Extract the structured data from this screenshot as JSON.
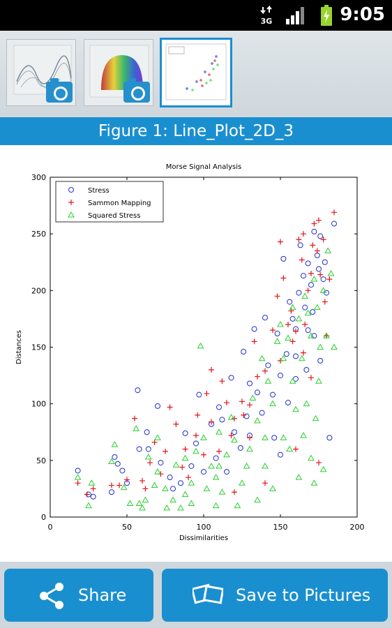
{
  "status_bar": {
    "time": "9:05",
    "network": "3G",
    "icons": [
      "3g-icon",
      "signal-icon",
      "battery-charging-icon"
    ]
  },
  "thumbnails": [
    {
      "name": "surface-wireframe-thumbnail",
      "selected": false
    },
    {
      "name": "surface-colormap-thumbnail",
      "selected": false
    },
    {
      "name": "scatter-plot-thumbnail",
      "selected": true
    }
  ],
  "figure_title": "Figure 1: Line_Plot_2D_3",
  "buttons": {
    "share_label": "Share",
    "save_label": "Save to Pictures"
  },
  "colors": {
    "accent": "#1a8fd0",
    "stress": "#1f2ecc",
    "sammon": "#e0141a",
    "squared": "#26d12a"
  },
  "chart_data": {
    "type": "scatter",
    "title": "Morse Signal Analysis",
    "xlabel": "Dissimilarities",
    "ylabel": "Distances",
    "xlim": [
      0,
      200
    ],
    "ylim": [
      0,
      300
    ],
    "xticks": [
      "0",
      "50",
      "100",
      "150",
      "200"
    ],
    "yticks": [
      "0",
      "50",
      "100",
      "150",
      "200",
      "250",
      "300"
    ],
    "legend": {
      "placement": "top-left"
    },
    "series": [
      {
        "name": "Stress",
        "marker": "circle",
        "color": "#1f2ecc",
        "points": [
          [
            18,
            41
          ],
          [
            25,
            20
          ],
          [
            28,
            18
          ],
          [
            40,
            22
          ],
          [
            42,
            53
          ],
          [
            44,
            47
          ],
          [
            47,
            41
          ],
          [
            50,
            30
          ],
          [
            57,
            112
          ],
          [
            63,
            75
          ],
          [
            64,
            60
          ],
          [
            70,
            98
          ],
          [
            78,
            35
          ],
          [
            80,
            25
          ],
          [
            88,
            74
          ],
          [
            92,
            45
          ],
          [
            95,
            65
          ],
          [
            100,
            40
          ],
          [
            105,
            82
          ],
          [
            108,
            52
          ],
          [
            110,
            97
          ],
          [
            115,
            40
          ],
          [
            120,
            75
          ],
          [
            124,
            61
          ],
          [
            128,
            89
          ],
          [
            130,
            72
          ],
          [
            133,
            166
          ],
          [
            135,
            110
          ],
          [
            138,
            92
          ],
          [
            142,
            134
          ],
          [
            145,
            108
          ],
          [
            148,
            162
          ],
          [
            150,
            125
          ],
          [
            152,
            228
          ],
          [
            154,
            144
          ],
          [
            156,
            190
          ],
          [
            158,
            175
          ],
          [
            160,
            166
          ],
          [
            162,
            198
          ],
          [
            163,
            240
          ],
          [
            165,
            213
          ],
          [
            166,
            185
          ],
          [
            168,
            224
          ],
          [
            170,
            205
          ],
          [
            171,
            181
          ],
          [
            172,
            252
          ],
          [
            174,
            231
          ],
          [
            175,
            219
          ],
          [
            176,
            248
          ],
          [
            178,
            210
          ],
          [
            180,
            198
          ],
          [
            182,
            70
          ],
          [
            185,
            259
          ],
          [
            58,
            60
          ],
          [
            72,
            48
          ],
          [
            85,
            30
          ],
          [
            97,
            108
          ],
          [
            118,
            123
          ],
          [
            126,
            146
          ],
          [
            140,
            176
          ],
          [
            146,
            70
          ],
          [
            155,
            101
          ],
          [
            160,
            142
          ],
          [
            167,
            130
          ],
          [
            172,
            160
          ],
          [
            176,
            138
          ],
          [
            179,
            225
          ],
          [
            160,
            122
          ],
          [
            168,
            165
          ],
          [
            150,
            55
          ],
          [
            130,
            118
          ],
          [
            112,
            86
          ]
        ]
      },
      {
        "name": "Sammon Mapping",
        "marker": "plus",
        "color": "#e0141a",
        "points": [
          [
            18,
            30
          ],
          [
            24,
            20
          ],
          [
            28,
            25
          ],
          [
            40,
            28
          ],
          [
            45,
            28
          ],
          [
            50,
            33
          ],
          [
            55,
            87
          ],
          [
            60,
            32
          ],
          [
            65,
            48
          ],
          [
            68,
            66
          ],
          [
            72,
            38
          ],
          [
            78,
            97
          ],
          [
            82,
            82
          ],
          [
            88,
            60
          ],
          [
            95,
            72
          ],
          [
            100,
            55
          ],
          [
            102,
            109
          ],
          [
            105,
            84
          ],
          [
            110,
            58
          ],
          [
            115,
            101
          ],
          [
            118,
            72
          ],
          [
            120,
            87
          ],
          [
            125,
            102
          ],
          [
            130,
            99
          ],
          [
            135,
            124
          ],
          [
            140,
            129
          ],
          [
            145,
            165
          ],
          [
            148,
            195
          ],
          [
            150,
            243
          ],
          [
            152,
            211
          ],
          [
            155,
            170
          ],
          [
            158,
            155
          ],
          [
            160,
            164
          ],
          [
            162,
            245
          ],
          [
            164,
            227
          ],
          [
            165,
            250
          ],
          [
            166,
            170
          ],
          [
            168,
            200
          ],
          [
            170,
            215
          ],
          [
            171,
            240
          ],
          [
            172,
            259
          ],
          [
            174,
            235
          ],
          [
            175,
            262
          ],
          [
            176,
            214
          ],
          [
            178,
            245
          ],
          [
            180,
            160
          ],
          [
            182,
            210
          ],
          [
            185,
            269
          ],
          [
            175,
            48
          ],
          [
            160,
            60
          ],
          [
            140,
            30
          ],
          [
            130,
            70
          ],
          [
            120,
            22
          ],
          [
            90,
            35
          ],
          [
            75,
            58
          ],
          [
            105,
            130
          ],
          [
            112,
            120
          ],
          [
            96,
            90
          ],
          [
            86,
            44
          ],
          [
            62,
            25
          ],
          [
            150,
            138
          ],
          [
            165,
            145
          ],
          [
            170,
            123
          ],
          [
            179,
            190
          ],
          [
            157,
            182
          ],
          [
            133,
            155
          ],
          [
            126,
            90
          ]
        ]
      },
      {
        "name": "Squared Stress",
        "marker": "triangle",
        "color": "#26d12a",
        "points": [
          [
            18,
            35
          ],
          [
            25,
            10
          ],
          [
            27,
            30
          ],
          [
            40,
            49
          ],
          [
            42,
            64
          ],
          [
            48,
            26
          ],
          [
            52,
            12
          ],
          [
            56,
            78
          ],
          [
            60,
            8
          ],
          [
            62,
            15
          ],
          [
            64,
            53
          ],
          [
            68,
            28
          ],
          [
            70,
            40
          ],
          [
            75,
            25
          ],
          [
            80,
            15
          ],
          [
            85,
            8
          ],
          [
            88,
            20
          ],
          [
            92,
            30
          ],
          [
            95,
            58
          ],
          [
            98,
            151
          ],
          [
            100,
            70
          ],
          [
            105,
            45
          ],
          [
            108,
            35
          ],
          [
            110,
            75
          ],
          [
            112,
            22
          ],
          [
            115,
            55
          ],
          [
            118,
            88
          ],
          [
            120,
            68
          ],
          [
            125,
            30
          ],
          [
            128,
            45
          ],
          [
            130,
            60
          ],
          [
            132,
            105
          ],
          [
            135,
            85
          ],
          [
            138,
            140
          ],
          [
            140,
            70
          ],
          [
            142,
            120
          ],
          [
            145,
            100
          ],
          [
            148,
            155
          ],
          [
            150,
            170
          ],
          [
            152,
            140
          ],
          [
            155,
            158
          ],
          [
            158,
            185
          ],
          [
            160,
            95
          ],
          [
            162,
            175
          ],
          [
            164,
            140
          ],
          [
            166,
            195
          ],
          [
            168,
            180
          ],
          [
            170,
            160
          ],
          [
            172,
            210
          ],
          [
            174,
            185
          ],
          [
            175,
            120
          ],
          [
            176,
            150
          ],
          [
            178,
            200
          ],
          [
            180,
            160
          ],
          [
            181,
            235
          ],
          [
            183,
            215
          ],
          [
            185,
            150
          ],
          [
            162,
            35
          ],
          [
            170,
            52
          ],
          [
            178,
            42
          ],
          [
            172,
            30
          ],
          [
            156,
            60
          ],
          [
            145,
            25
          ],
          [
            135,
            15
          ],
          [
            122,
            10
          ],
          [
            108,
            10
          ],
          [
            92,
            12
          ],
          [
            76,
            8
          ],
          [
            140,
            45
          ],
          [
            152,
            70
          ],
          [
            165,
            72
          ],
          [
            158,
            120
          ],
          [
            167,
            100
          ],
          [
            173,
            87
          ],
          [
            110,
            45
          ],
          [
            102,
            25
          ],
          [
            88,
            52
          ],
          [
            82,
            46
          ],
          [
            58,
            12
          ],
          [
            70,
            70
          ]
        ]
      }
    ]
  }
}
